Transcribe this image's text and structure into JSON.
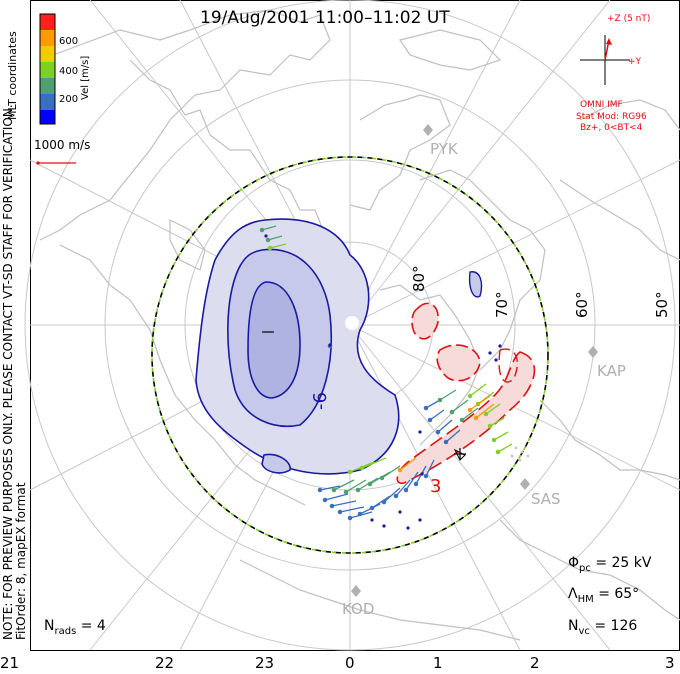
{
  "title": "19/Aug/2001  11:00–11:02 UT",
  "colorbar": {
    "label": "Vel [m/s]",
    "ticks": [
      "600",
      "400",
      "200"
    ],
    "colors": [
      "#0000ff",
      "#3a6ec0",
      "#4ea06e",
      "#7ed022",
      "#f2cc00",
      "#ff9a00",
      "#ff2020"
    ]
  },
  "coordinates_label": "MLT coordinates",
  "scale_label": "1000 m/s",
  "disclaimer": {
    "line1": "NOTE: FOR PREVIEW PURPOSES ONLY. PLEASE CONTACT VT-SD STAFF FOR VERIFICATION.",
    "line2": "FitOrder: 8, mapEX format"
  },
  "imf": {
    "z_label": "+Z (5 nT)",
    "y_label": "+Y",
    "source": "OMNI IMF",
    "model": "Stat Mod: RG96",
    "condition": "Bz+, 0<BT<4"
  },
  "stations": [
    "PYK",
    "KAP",
    "SAS",
    "KOD"
  ],
  "latitude_labels": [
    "80°",
    "70°",
    "60°",
    "50°"
  ],
  "contour_labels": [
    "-6",
    "3"
  ],
  "stats": {
    "phi_pc_label": "Φ",
    "phi_pc_sub": "pc",
    "phi_pc_value": "= 25 kV",
    "lambda_label": "Λ",
    "lambda_sub": "HM",
    "lambda_value": "= 65°",
    "nvc_label": "N",
    "nvc_sub": "vc",
    "nvc_value": "= 126",
    "nrads_label": "N",
    "nrads_sub": "rads",
    "nrads_value": "= 4"
  },
  "mlt_axis": [
    "21",
    "22",
    "23",
    "0",
    "1",
    "2",
    "3"
  ]
}
